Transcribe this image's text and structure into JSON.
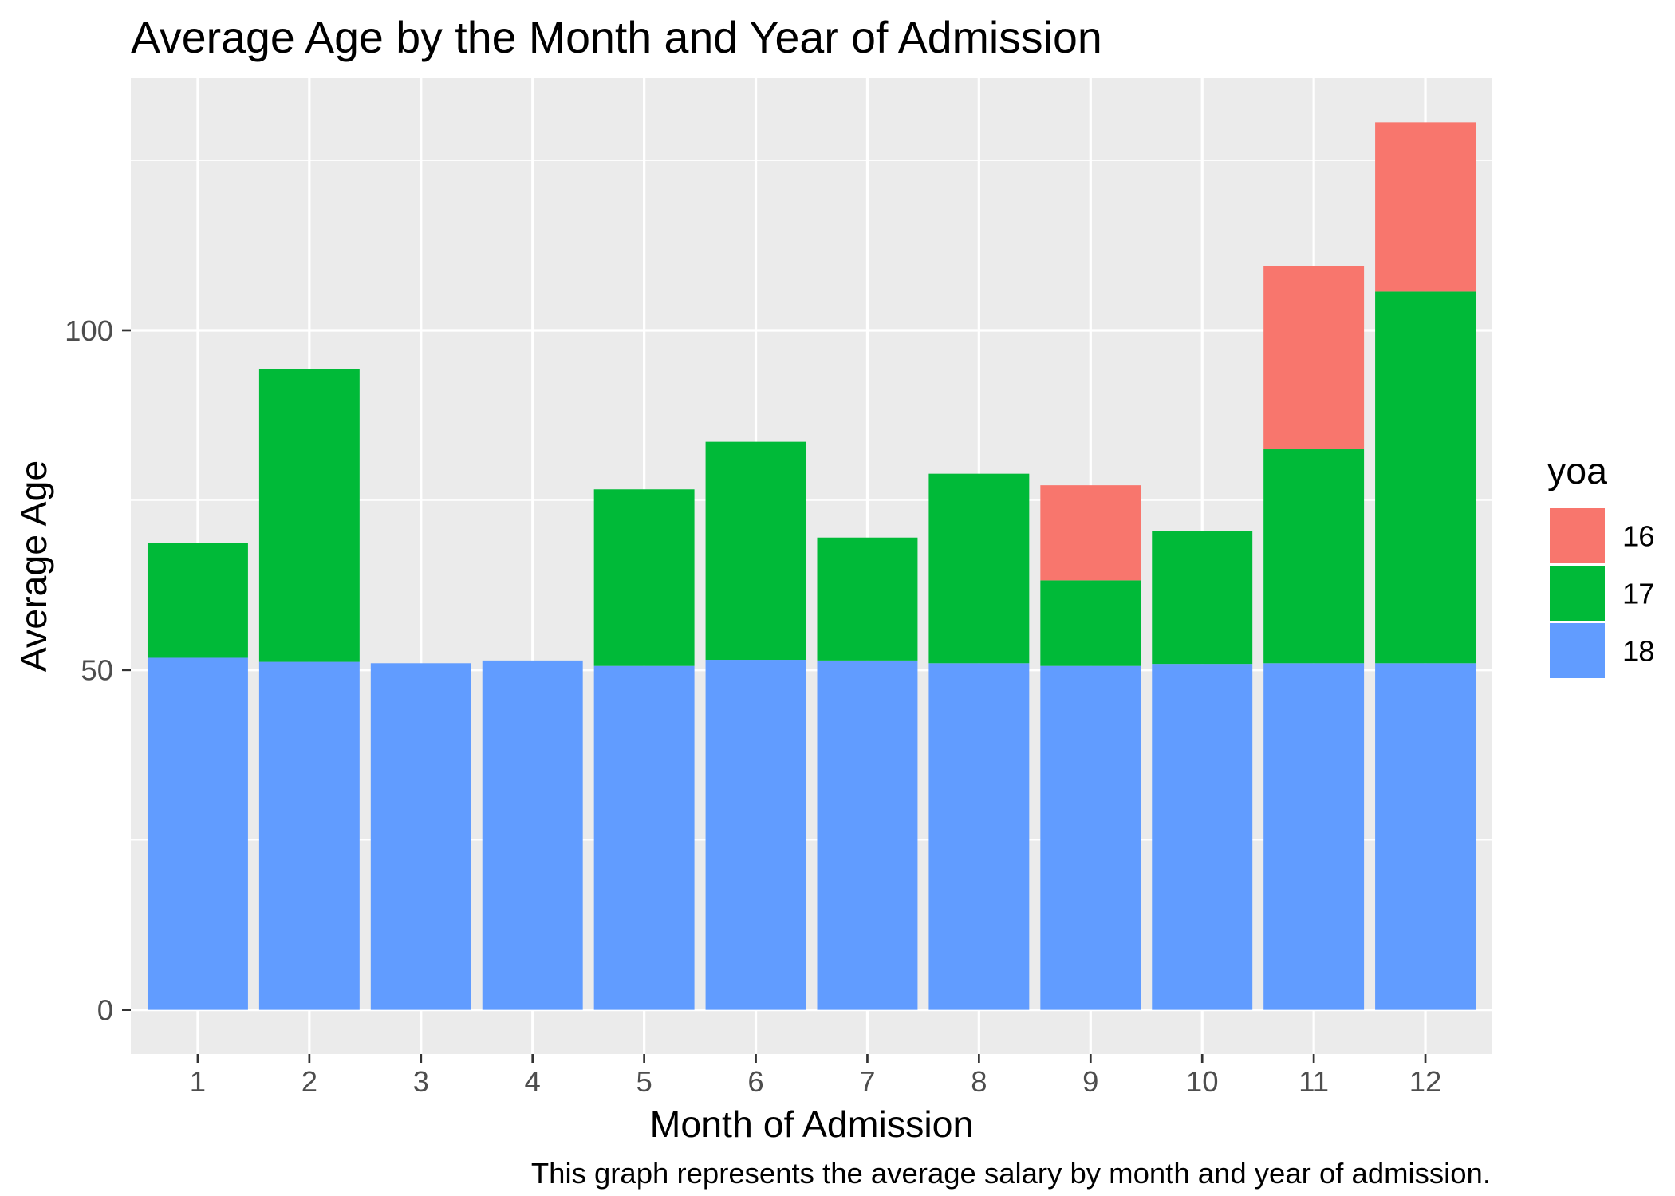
{
  "chart_data": {
    "type": "bar",
    "stacked": true,
    "title": "Average Age by the Month and Year of Admission",
    "xlabel": "Month of Admission",
    "ylabel": "Average Age",
    "caption": "This graph represents the average salary by month and year of admission.",
    "categories": [
      "1",
      "2",
      "3",
      "4",
      "5",
      "6",
      "7",
      "8",
      "9",
      "10",
      "11",
      "12"
    ],
    "series": [
      {
        "name": "16",
        "color": "#F8766D",
        "values": [
          null,
          null,
          null,
          null,
          null,
          null,
          null,
          null,
          14.0,
          null,
          26.9,
          24.9
        ]
      },
      {
        "name": "17",
        "color": "#00BA38",
        "values": [
          16.9,
          43.1,
          null,
          null,
          26.0,
          32.1,
          18.1,
          27.9,
          12.6,
          19.6,
          31.5,
          54.7
        ]
      },
      {
        "name": "18",
        "color": "#619CFF",
        "values": [
          51.8,
          51.2,
          51.0,
          51.4,
          50.6,
          51.5,
          51.4,
          51.0,
          50.6,
          50.9,
          51.0,
          51.0
        ]
      }
    ],
    "ylim": [
      -6.5,
      137.1
    ],
    "yticks": [
      0,
      50,
      100
    ],
    "grid": true,
    "legend": {
      "title": "yoa",
      "position": "right"
    }
  }
}
